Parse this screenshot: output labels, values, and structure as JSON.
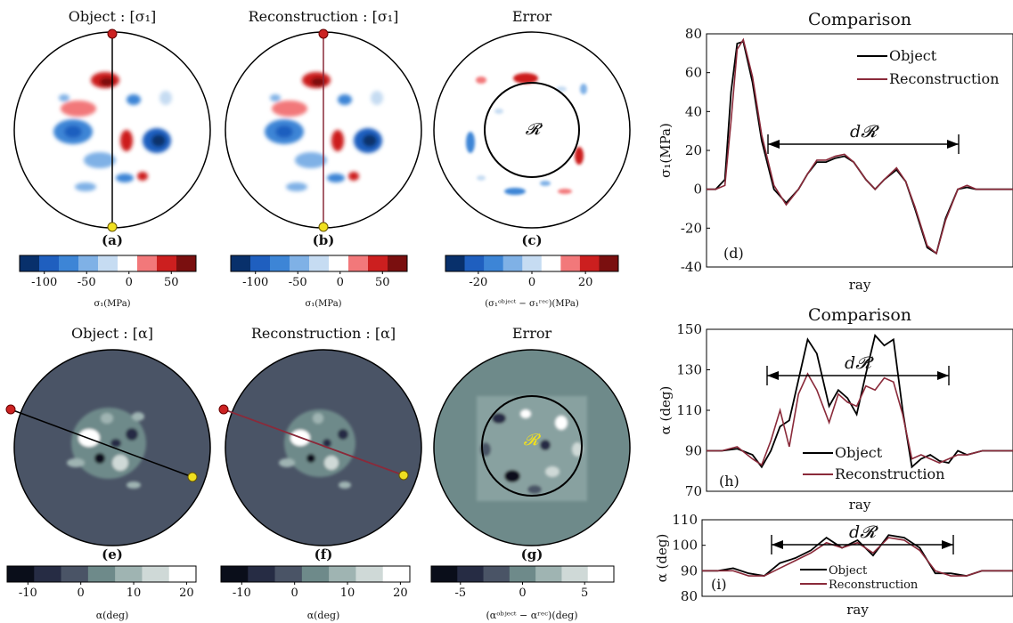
{
  "panels": {
    "a": {
      "title": "Object : [σ₁]",
      "letter": "(a)"
    },
    "b": {
      "title": "Reconstruction : [σ₁]",
      "letter": "(b)"
    },
    "c": {
      "title": "Error",
      "letter": "(c)",
      "region": "𝓡"
    },
    "d": {
      "letter": "(d)"
    },
    "e": {
      "title": "Object : [α]",
      "letter": "(e)"
    },
    "f": {
      "title": "Reconstruction : [α]",
      "letter": "(f)"
    },
    "g": {
      "title": "Error",
      "letter": "(g)",
      "region": "𝓡"
    },
    "h": {
      "letter": "(h)"
    },
    "i": {
      "letter": "(i)"
    }
  },
  "colorbars": {
    "a": {
      "ticks": [
        "-100",
        "-50",
        "0",
        "50"
      ],
      "label": "σ₁(MPa)"
    },
    "b": {
      "ticks": [
        "-100",
        "-50",
        "0",
        "50"
      ],
      "label": "σ₁(MPa)"
    },
    "c": {
      "ticks": [
        "-20",
        "0",
        "20"
      ],
      "label": "(σ₁ᵒᵇʲᵉᶜᵗ − σ₁ʳᵉᶜ)(MPa)"
    },
    "e": {
      "ticks": [
        "-10",
        "0",
        "10",
        "20"
      ],
      "label": "α(deg)"
    },
    "f": {
      "ticks": [
        "-10",
        "0",
        "10",
        "20"
      ],
      "label": "α(deg)"
    },
    "g": {
      "ticks": [
        "-5",
        "0",
        "5"
      ],
      "label": "(αᵒᵇʲᵉᶜᵗ − αʳᵉᶜ)(deg)"
    }
  },
  "colors": {
    "diverging": [
      "#08306b",
      "#1f5fbf",
      "#3d85d6",
      "#7fb1e6",
      "#c6dcf2",
      "#ffffff",
      "#f2787a",
      "#cc1f1f",
      "#7a0f0f"
    ],
    "grey": [
      "#0a0e1a",
      "#262c44",
      "#4a5466",
      "#6e8a8a",
      "#9fb4b2",
      "#cfd9d7",
      "#ffffff"
    ],
    "object_line": "#000000",
    "recon_line": "#8a2a3a"
  },
  "chart_data": [
    {
      "type": "line",
      "title": "Comparison",
      "xlabel": "ray",
      "ylabel": "σ₁(MPa)",
      "ylim": [
        -40,
        80
      ],
      "yticks": [
        "80",
        "60",
        "40",
        "20",
        "0",
        "-20",
        "-40"
      ],
      "legend": [
        "Object",
        "Reconstruction"
      ],
      "legend_position": "top-right",
      "annotation": "d𝓡",
      "x": [
        0,
        3,
        6,
        8,
        10,
        12,
        15,
        18,
        22,
        26,
        30,
        33,
        36,
        39,
        42,
        45,
        48,
        52,
        55,
        58,
        62,
        65,
        68,
        72,
        75,
        78,
        82,
        85,
        88,
        92,
        96,
        100
      ],
      "series": [
        {
          "name": "Object",
          "values": [
            0,
            0,
            5,
            50,
            75,
            76,
            55,
            25,
            0,
            -7,
            0,
            8,
            14,
            14,
            16,
            17,
            14,
            5,
            0,
            5,
            10,
            4,
            -10,
            -30,
            -33,
            -15,
            0,
            1,
            0,
            0,
            0,
            0
          ]
        },
        {
          "name": "Reconstruction",
          "values": [
            0,
            0,
            2,
            35,
            72,
            77,
            58,
            28,
            2,
            -8,
            0,
            8,
            15,
            15,
            17,
            18,
            14,
            5,
            0,
            5,
            11,
            4,
            -9,
            -29,
            -33,
            -16,
            0,
            2,
            0,
            0,
            0,
            0
          ]
        }
      ]
    },
    {
      "type": "line",
      "title": "Comparison",
      "xlabel": "ray",
      "ylabel": "α (deg)",
      "ylim": [
        70,
        150
      ],
      "yticks": [
        "150",
        "130",
        "110",
        "90",
        "70"
      ],
      "legend": [
        "Object",
        "Reconstruction"
      ],
      "legend_position": "bottom-center",
      "annotation": "d𝓡",
      "x": [
        0,
        5,
        10,
        15,
        18,
        21,
        24,
        27,
        30,
        33,
        36,
        40,
        43,
        46,
        49,
        52,
        55,
        58,
        61,
        64,
        67,
        70,
        73,
        76,
        79,
        82,
        85,
        90,
        95,
        100
      ],
      "series": [
        {
          "name": "Object",
          "values": [
            90,
            90,
            91,
            88,
            82,
            90,
            102,
            105,
            125,
            145,
            138,
            112,
            120,
            116,
            108,
            128,
            147,
            142,
            145,
            110,
            82,
            86,
            88,
            85,
            84,
            90,
            88,
            90,
            90,
            90
          ]
        },
        {
          "name": "Reconstruction",
          "values": [
            90,
            90,
            92,
            86,
            83,
            95,
            110,
            92,
            118,
            128,
            120,
            104,
            118,
            114,
            112,
            122,
            120,
            126,
            124,
            108,
            86,
            88,
            86,
            84,
            86,
            88,
            88,
            90,
            90,
            90
          ]
        }
      ]
    },
    {
      "type": "line",
      "xlabel": "ray",
      "ylabel": "α (deg)",
      "ylim": [
        80,
        110
      ],
      "yticks": [
        "110",
        "100",
        "90",
        "80"
      ],
      "legend": [
        "Object",
        "Reconstruction"
      ],
      "legend_position": "bottom-left",
      "annotation": "d𝓡",
      "x": [
        0,
        5,
        10,
        15,
        20,
        25,
        30,
        35,
        40,
        45,
        50,
        55,
        60,
        65,
        70,
        75,
        80,
        85,
        90,
        95,
        100
      ],
      "series": [
        {
          "name": "Object",
          "values": [
            90,
            90,
            91,
            89,
            88,
            93,
            95,
            98,
            103,
            99,
            102,
            96,
            104,
            103,
            99,
            89,
            89,
            88,
            90,
            90,
            90
          ]
        },
        {
          "name": "Reconstruction",
          "values": [
            90,
            90,
            90,
            88,
            88,
            91,
            94,
            97,
            101,
            99,
            101,
            97,
            103,
            102,
            98,
            90,
            88,
            88,
            90,
            90,
            90
          ]
        }
      ]
    }
  ]
}
